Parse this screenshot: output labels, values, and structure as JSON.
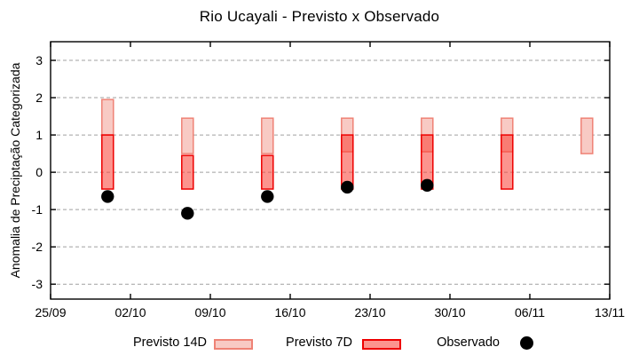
{
  "chart_data": {
    "type": "bar",
    "subtype": "range-bars-with-scatter",
    "title": "Rio Ucayali - Previsto x Observado",
    "xlabel": "",
    "ylabel": "Anomalia de Preciptação Categorizada",
    "x_tick_labels": [
      "25/09",
      "02/10",
      "09/10",
      "16/10",
      "23/10",
      "30/10",
      "06/11",
      "13/11"
    ],
    "x_domain_days": [
      0,
      49
    ],
    "x_tick_step_days": 7,
    "y_ticks": [
      3,
      2,
      1,
      0,
      -1,
      -2,
      -3
    ],
    "ylim": [
      -3.4,
      3.5
    ],
    "grid": "horizontal dashed",
    "legend_position": "bottom",
    "colors": {
      "background": "#ffffff",
      "axis_frame": "#000000",
      "gridline": "#a0a0a0",
      "tick_text": "#000000"
    },
    "series": [
      {
        "name": "Previsto 14D",
        "type": "range-bar",
        "fill": "#f8cac4",
        "border": "#ef8275",
        "points": [
          {
            "x_day": 5,
            "low": 1.0,
            "high": 1.95
          },
          {
            "x_day": 12,
            "low": 0.5,
            "high": 1.45
          },
          {
            "x_day": 19,
            "low": 0.5,
            "high": 1.45
          },
          {
            "x_day": 26,
            "low": 0.55,
            "high": 1.45
          },
          {
            "x_day": 33,
            "low": 0.55,
            "high": 1.45
          },
          {
            "x_day": 40,
            "low": 0.55,
            "high": 1.45
          },
          {
            "x_day": 47,
            "low": 0.5,
            "high": 1.45
          }
        ]
      },
      {
        "name": "Previsto 7D",
        "type": "range-bar",
        "fill": "rgba(250,60,50,0.55)",
        "border": "#ee0000",
        "points": [
          {
            "x_day": 5,
            "low": -0.45,
            "high": 1.0
          },
          {
            "x_day": 12,
            "low": -0.45,
            "high": 0.45
          },
          {
            "x_day": 19,
            "low": -0.45,
            "high": 0.45
          },
          {
            "x_day": 26,
            "low": -0.45,
            "high": 1.0
          },
          {
            "x_day": 33,
            "low": -0.45,
            "high": 1.0
          },
          {
            "x_day": 40,
            "low": -0.45,
            "high": 1.0
          }
        ]
      },
      {
        "name": "Observado",
        "type": "scatter",
        "fill": "#000000",
        "points": [
          {
            "x_day": 5,
            "y": -0.65
          },
          {
            "x_day": 12,
            "y": -1.1
          },
          {
            "x_day": 19,
            "y": -0.65
          },
          {
            "x_day": 26,
            "y": -0.4
          },
          {
            "x_day": 33,
            "y": -0.35
          }
        ]
      }
    ]
  }
}
